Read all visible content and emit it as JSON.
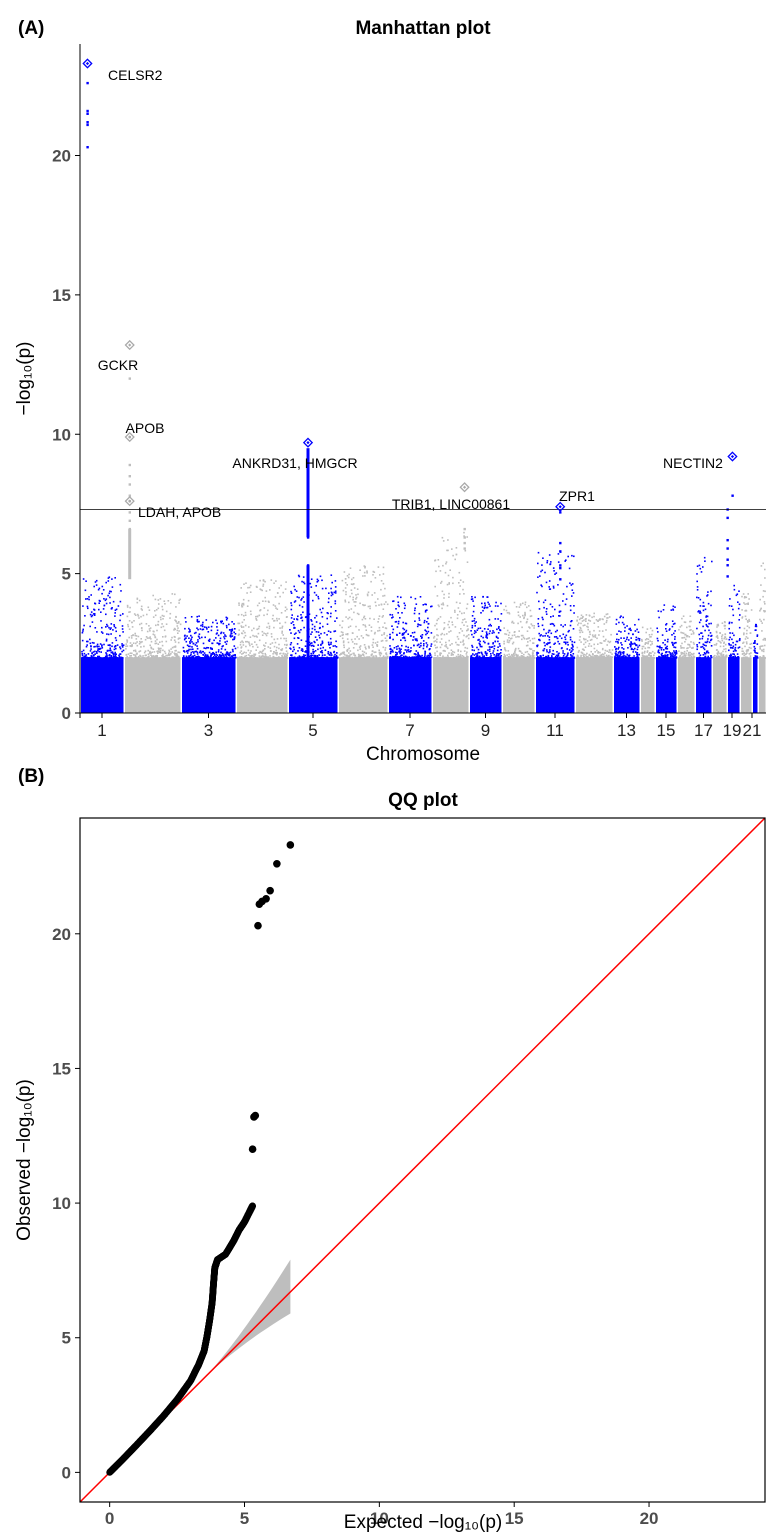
{
  "panels": {
    "a": {
      "letter": "(A)"
    },
    "b": {
      "letter": "(B)"
    }
  },
  "chart_data": [
    {
      "type": "scatter",
      "title": "Manhattan plot",
      "xlabel": "Chromosome",
      "ylabel": "−log₁₀(p)",
      "ylim": [
        0,
        24
      ],
      "yticks": [
        0,
        5,
        10,
        15,
        20
      ],
      "grid": false,
      "significance_line": 7.3,
      "colors": {
        "odd": "#0000ff",
        "even": "#bebebe"
      },
      "chromosomes": [
        {
          "chr": 1,
          "max": 4.9
        },
        {
          "chr": 2,
          "max": 4.3
        },
        {
          "chr": 3,
          "max": 3.5
        },
        {
          "chr": 4,
          "max": 4.8
        },
        {
          "chr": 5,
          "max": 5.0
        },
        {
          "chr": 6,
          "max": 5.3
        },
        {
          "chr": 7,
          "max": 4.2
        },
        {
          "chr": 8,
          "max": 6.5
        },
        {
          "chr": 9,
          "max": 4.2
        },
        {
          "chr": 10,
          "max": 4.0
        },
        {
          "chr": 11,
          "max": 5.8
        },
        {
          "chr": 12,
          "max": 3.6
        },
        {
          "chr": 13,
          "max": 3.5
        },
        {
          "chr": 14,
          "max": 3.1
        },
        {
          "chr": 15,
          "max": 3.9
        },
        {
          "chr": 16,
          "max": 3.5
        },
        {
          "chr": 17,
          "max": 5.6
        },
        {
          "chr": 18,
          "max": 3.3
        },
        {
          "chr": 19,
          "max": 4.6
        },
        {
          "chr": 20,
          "max": 4.3
        },
        {
          "chr": 21,
          "max": 3.2
        },
        {
          "chr": 22,
          "max": 5.4
        }
      ],
      "x_tick_labels": [
        "1",
        "3",
        "5",
        "7",
        "9",
        "11",
        "13",
        "15",
        "17",
        "19",
        "21"
      ],
      "highlighted_snps": [
        {
          "chr": 1,
          "pos": 0.17,
          "p": [
            23.3,
            22.6,
            21.6,
            21.5,
            21.2,
            21.1,
            20.3
          ]
        },
        {
          "chr": 2,
          "pos": 0.1,
          "p": [
            13.2,
            12.0,
            9.9,
            8.9,
            8.5,
            8.2,
            7.8,
            7.6,
            7.2,
            6.9,
            6.6,
            6.4,
            6.2,
            6.0,
            5.8,
            5.5,
            5.2
          ]
        },
        {
          "chr": 5,
          "pos": 0.4,
          "p": [
            9.7,
            9.4,
            9.2,
            9.0,
            8.8,
            8.5,
            8.2,
            8.0,
            7.7,
            7.4,
            7.1,
            6.8,
            6.5,
            6.3,
            5.3,
            5.2,
            5.0,
            4.9,
            4.7
          ]
        },
        {
          "chr": 8,
          "pos": 0.88,
          "p": [
            8.1,
            6.6,
            6.3,
            6.1,
            5.9
          ]
        },
        {
          "chr": 11,
          "pos": 0.63,
          "p": [
            7.4,
            7.2,
            6.1,
            5.8,
            5.3,
            5.2,
            4.8
          ]
        },
        {
          "chr": 19,
          "pos": 0.42,
          "p": [
            9.2,
            7.8
          ]
        }
      ],
      "chr19_secondary": {
        "pos": 0.05,
        "p": [
          7.3,
          7.0,
          6.2,
          5.9,
          5.5,
          5.3,
          4.9
        ]
      },
      "annotations": [
        {
          "label": "CELSR2",
          "chr": 1,
          "pos": 0.17,
          "p": 23.3
        },
        {
          "label": "GCKR",
          "chr": 2,
          "pos": 0.1,
          "p": 13.2
        },
        {
          "label": "APOB",
          "chr": 2,
          "pos": 0.1,
          "p": 9.9
        },
        {
          "label": "LDAH, APOB",
          "chr": 2,
          "pos": 0.1,
          "p": 7.6
        },
        {
          "label": "ANKRD31, HMGCR",
          "chr": 5,
          "pos": 0.4,
          "p": 9.7
        },
        {
          "label": "TRIB1, LINC00861",
          "chr": 8,
          "pos": 0.88,
          "p": 8.1
        },
        {
          "label": "ZPR1",
          "chr": 11,
          "pos": 0.63,
          "p": 7.4
        },
        {
          "label": "NECTIN2",
          "chr": 19,
          "pos": 0.42,
          "p": 9.2
        }
      ]
    },
    {
      "type": "scatter",
      "title": "QQ plot",
      "xlabel": "Expected −log₁₀(p)",
      "ylabel": "Observed −log₁₀(p)",
      "xlim": [
        -1.1,
        24.3
      ],
      "ylim": [
        -1.1,
        24.3
      ],
      "xticks": [
        0,
        5,
        10,
        15,
        20
      ],
      "yticks": [
        0,
        5,
        10,
        15,
        20
      ],
      "reference_line": "y = x",
      "reference_line_color": "#ff0000",
      "confidence_band_color": "#bebebe",
      "points_color": "#000000",
      "qq_curve": [
        [
          0,
          0
        ],
        [
          0.5,
          0.5
        ],
        [
          1,
          1.02
        ],
        [
          1.5,
          1.55
        ],
        [
          2,
          2.1
        ],
        [
          2.5,
          2.7
        ],
        [
          3.0,
          3.4
        ],
        [
          3.3,
          4.0
        ],
        [
          3.5,
          4.5
        ],
        [
          3.6,
          5.0
        ],
        [
          3.7,
          5.6
        ],
        [
          3.8,
          6.3
        ],
        [
          3.85,
          7.0
        ],
        [
          3.9,
          7.6
        ],
        [
          4.0,
          7.9
        ],
        [
          4.3,
          8.1
        ],
        [
          4.6,
          8.6
        ],
        [
          4.8,
          9.0
        ],
        [
          5.0,
          9.3
        ],
        [
          5.2,
          9.7
        ],
        [
          5.3,
          9.9
        ]
      ],
      "outliers": [
        [
          5.3,
          12.0
        ],
        [
          5.35,
          13.2
        ],
        [
          5.4,
          13.25
        ],
        [
          5.5,
          20.3
        ],
        [
          5.55,
          21.1
        ],
        [
          5.65,
          21.2
        ],
        [
          5.8,
          21.3
        ],
        [
          5.95,
          21.6
        ],
        [
          6.2,
          22.6
        ],
        [
          6.7,
          23.3
        ]
      ],
      "band": {
        "x_end": 6.7,
        "upper_end": 7.9,
        "lower_end": 5.9
      }
    }
  ]
}
